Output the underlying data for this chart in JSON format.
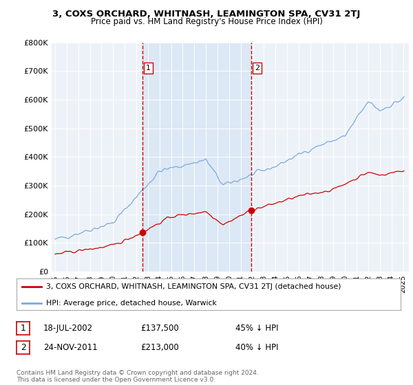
{
  "title": "3, COXS ORCHARD, WHITNASH, LEAMINGTON SPA, CV31 2TJ",
  "subtitle": "Price paid vs. HM Land Registry's House Price Index (HPI)",
  "legend_line1": "3, COXS ORCHARD, WHITNASH, LEAMINGTON SPA, CV31 2TJ (detached house)",
  "legend_line2": "HPI: Average price, detached house, Warwick",
  "annotation1_label": "1",
  "annotation1_date": "18-JUL-2002",
  "annotation1_price": "£137,500",
  "annotation1_pct": "45% ↓ HPI",
  "annotation2_label": "2",
  "annotation2_date": "24-NOV-2011",
  "annotation2_price": "£213,000",
  "annotation2_pct": "40% ↓ HPI",
  "footer": "Contains HM Land Registry data © Crown copyright and database right 2024.\nThis data is licensed under the Open Government Licence v3.0.",
  "hpi_color": "#7aaadd",
  "price_color": "#cc0000",
  "vline_color": "#cc0000",
  "shade_color": "#dce8f5",
  "background_color": "#ffffff",
  "plot_bg_color": "#edf2f8",
  "ylim": [
    0,
    800000
  ],
  "yticks": [
    0,
    100000,
    200000,
    300000,
    400000,
    500000,
    600000,
    700000,
    800000
  ],
  "xlim_start": 1994.7,
  "xlim_end": 2025.5,
  "sale1_x": 2002.54,
  "sale1_y": 137500,
  "sale2_x": 2011.9,
  "sale2_y": 213000
}
